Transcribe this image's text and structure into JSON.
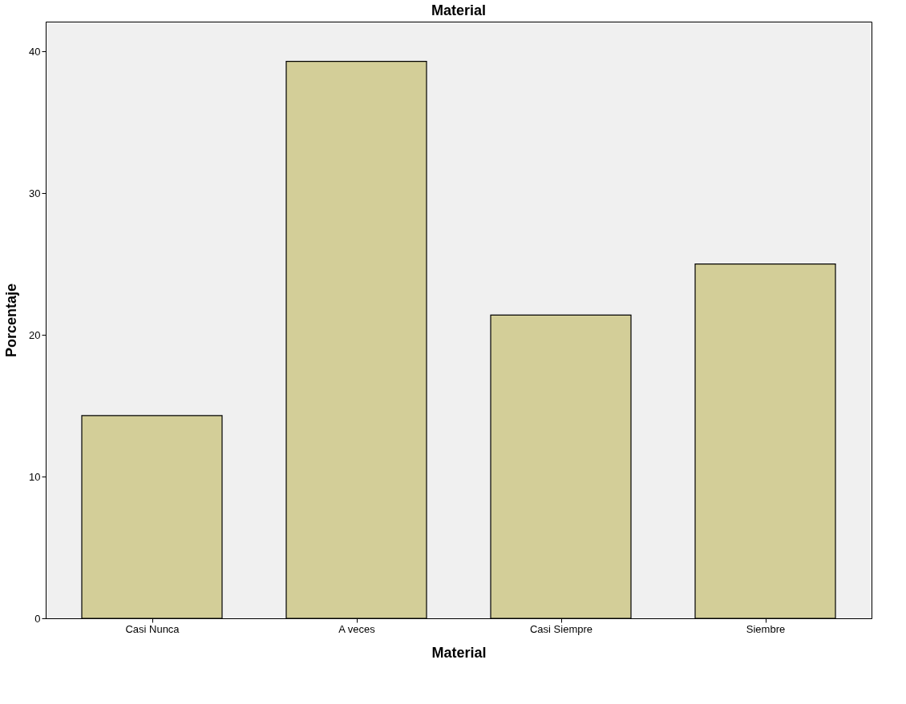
{
  "chart_data": {
    "type": "bar",
    "title": "Material",
    "xlabel": "Material",
    "ylabel": "Porcentaje",
    "categories": [
      "Casi Nunca",
      "A veces",
      "Casi Siempre",
      "Siembre"
    ],
    "values": [
      14.3,
      39.3,
      21.4,
      25.0
    ],
    "color": "#d3ce98",
    "ylim": [
      0,
      42.1
    ],
    "yticks": [
      0,
      10,
      20,
      30,
      40
    ],
    "grid": false
  }
}
